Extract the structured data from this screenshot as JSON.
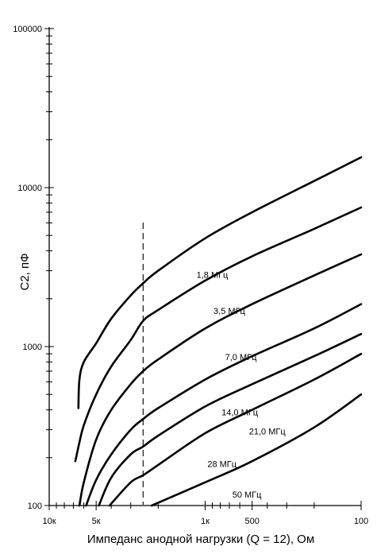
{
  "chart_data": {
    "type": "line",
    "xlabel": "Импеданс анодной нагрузки (Q = 12),  Ом",
    "ylabel": "С2, пФ",
    "x_scale": "log",
    "x_direction": "decreasing",
    "y_scale": "log",
    "xlim": [
      10000,
      100
    ],
    "ylim": [
      100,
      100000
    ],
    "x_tick_labels": [
      {
        "value": 10000,
        "label": "10к"
      },
      {
        "value": 5000,
        "label": "5к"
      },
      {
        "value": 1000,
        "label": "1к"
      },
      {
        "value": 500,
        "label": "500"
      },
      {
        "value": 100,
        "label": "100"
      }
    ],
    "y_tick_labels": [
      {
        "value": 100,
        "label": "100"
      },
      {
        "value": 1000,
        "label": "1000"
      },
      {
        "value": 10000,
        "label": "10000"
      },
      {
        "value": 100000,
        "label": "100000"
      }
    ],
    "reference_line": {
      "x": 2500,
      "style": "dashed"
    },
    "grid": false,
    "series": [
      {
        "name": "1,8 МГц",
        "points": [
          [
            6500,
            410
          ],
          [
            6400,
            620
          ],
          [
            6000,
            800
          ],
          [
            5000,
            1050
          ],
          [
            4000,
            1500
          ],
          [
            3000,
            2100
          ],
          [
            2500,
            2500
          ],
          [
            2000,
            3000
          ],
          [
            1000,
            4800
          ],
          [
            500,
            7000
          ],
          [
            200,
            11000
          ],
          [
            100,
            15500
          ]
        ]
      },
      {
        "name": "3,5 МГц",
        "points": [
          [
            6800,
            190
          ],
          [
            6400,
            250
          ],
          [
            6000,
            320
          ],
          [
            5000,
            500
          ],
          [
            4000,
            750
          ],
          [
            3000,
            1100
          ],
          [
            2500,
            1450
          ],
          [
            2000,
            1700
          ],
          [
            1000,
            2600
          ],
          [
            500,
            3700
          ],
          [
            200,
            5500
          ],
          [
            100,
            7500
          ]
        ]
      },
      {
        "name": "7,0 МГц",
        "points": [
          [
            6400,
            100
          ],
          [
            6000,
            140
          ],
          [
            5000,
            260
          ],
          [
            4000,
            400
          ],
          [
            3000,
            580
          ],
          [
            2500,
            700
          ],
          [
            2000,
            830
          ],
          [
            1000,
            1300
          ],
          [
            500,
            1850
          ],
          [
            200,
            2800
          ],
          [
            100,
            3800
          ]
        ]
      },
      {
        "name": "14,0 МГц",
        "points": [
          [
            5800,
            100
          ],
          [
            5000,
            145
          ],
          [
            4000,
            210
          ],
          [
            3000,
            300
          ],
          [
            2500,
            350
          ],
          [
            2000,
            410
          ],
          [
            1000,
            620
          ],
          [
            500,
            870
          ],
          [
            200,
            1300
          ],
          [
            100,
            1850
          ]
        ]
      },
      {
        "name": "21,0 МГц",
        "points": [
          [
            4800,
            100
          ],
          [
            4000,
            150
          ],
          [
            3000,
            210
          ],
          [
            2500,
            235
          ],
          [
            2000,
            275
          ],
          [
            1000,
            420
          ],
          [
            500,
            580
          ],
          [
            200,
            870
          ],
          [
            100,
            1200
          ]
        ]
      },
      {
        "name": "28 МГц",
        "points": [
          [
            4100,
            100
          ],
          [
            3000,
            140
          ],
          [
            2500,
            155
          ],
          [
            2000,
            180
          ],
          [
            1000,
            285
          ],
          [
            500,
            400
          ],
          [
            200,
            620
          ],
          [
            100,
            900
          ]
        ]
      },
      {
        "name": "50 МГц",
        "points": [
          [
            2200,
            100
          ],
          [
            1000,
            140
          ],
          [
            500,
            190
          ],
          [
            200,
            310
          ],
          [
            100,
            500
          ]
        ]
      }
    ],
    "series_label_anchor": [
      {
        "x": 900,
        "y": 2700
      },
      {
        "x": 700,
        "y": 1600
      },
      {
        "x": 590,
        "y": 820
      },
      {
        "x": 600,
        "y": 370
      },
      {
        "x": 400,
        "y": 280
      },
      {
        "x": 780,
        "y": 175
      },
      {
        "x": 540,
        "y": 112
      }
    ]
  }
}
